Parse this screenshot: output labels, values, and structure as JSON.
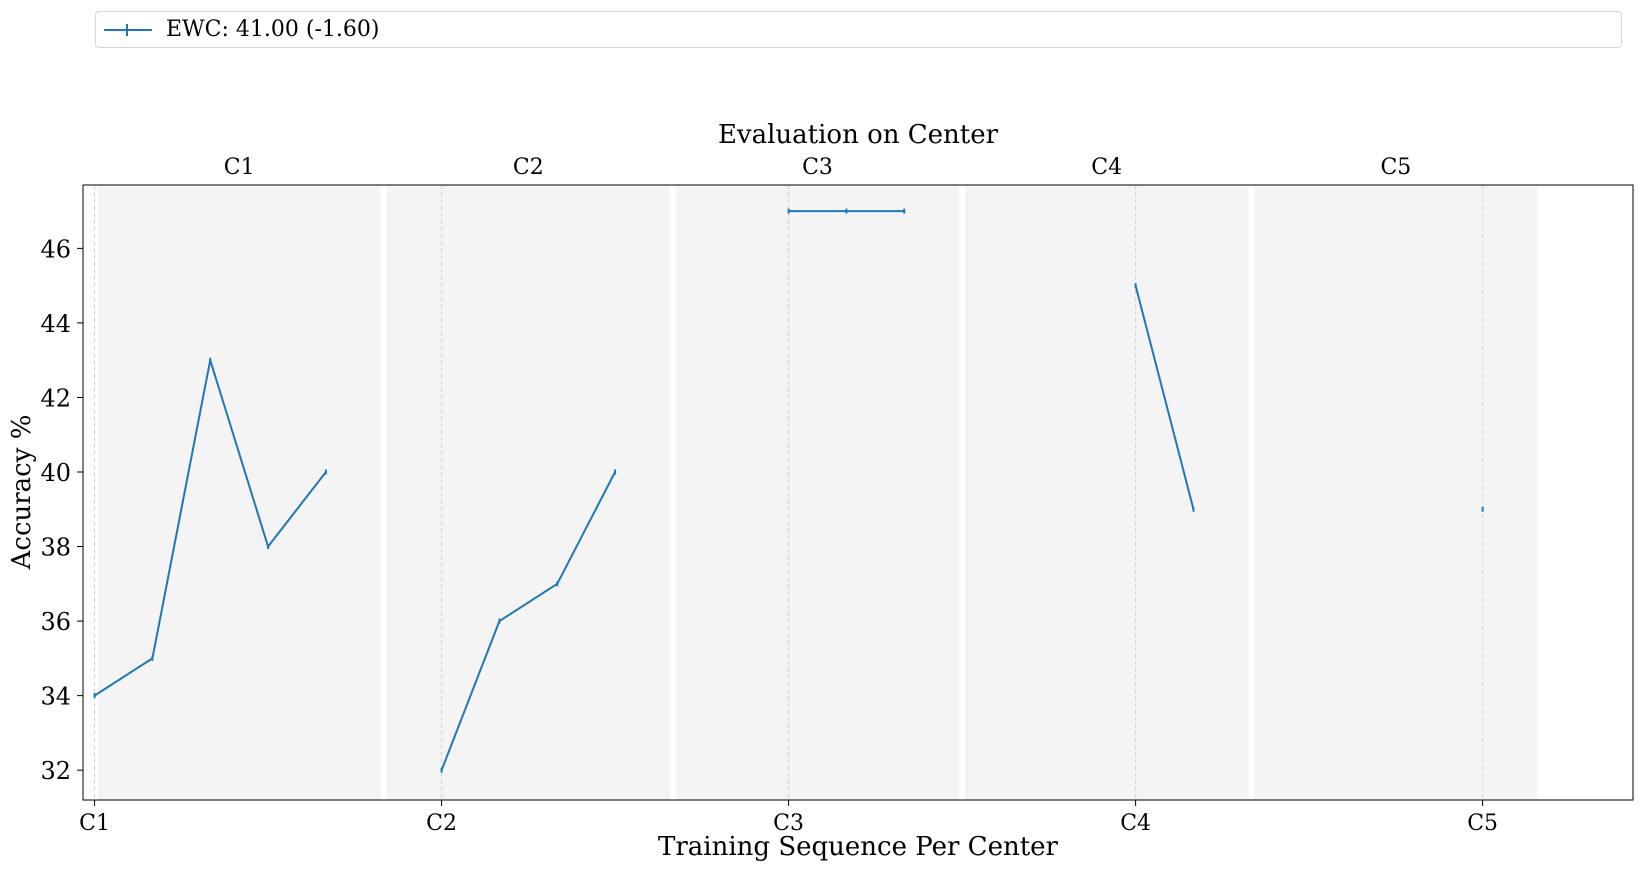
{
  "legend": {
    "label": "EWC: 41.00 (-1.60)",
    "color": "#1f77b4"
  },
  "chart_data": {
    "type": "line",
    "title": "Evaluation on Center",
    "xlabel": "Training Sequence Per Center",
    "ylabel": "Accuracy %",
    "ylim": [
      31.2,
      47.7
    ],
    "yticks": [
      32,
      34,
      36,
      38,
      40,
      42,
      44,
      46
    ],
    "xlim": [
      -0.2,
      26.6
    ],
    "xticks": [
      {
        "x": 0,
        "label": "C1"
      },
      {
        "x": 6,
        "label": "C2"
      },
      {
        "x": 12,
        "label": "C3"
      },
      {
        "x": 18,
        "label": "C4"
      },
      {
        "x": 24,
        "label": "C5"
      }
    ],
    "grid": "vertical dashed at tick positions",
    "legend_placement": "top, above plot",
    "line_color": "#1f77b4",
    "panel_color": "#f4f4f4",
    "panels": [
      {
        "label": "C1",
        "x_start": 0,
        "x_end": 5
      },
      {
        "label": "C2",
        "x_start": 5,
        "x_end": 10
      },
      {
        "label": "C3",
        "x_start": 10,
        "x_end": 15
      },
      {
        "label": "C4",
        "x_start": 15,
        "x_end": 20
      },
      {
        "label": "C5",
        "x_start": 20,
        "x_end": 25
      }
    ],
    "series": [
      {
        "name": "EWC: 41.00 (-1.60)",
        "segment": "C1",
        "x": [
          0,
          1,
          2,
          3,
          4
        ],
        "y": [
          34,
          35,
          43,
          38,
          40
        ]
      },
      {
        "segment": "C2",
        "x": [
          6,
          7,
          8,
          9
        ],
        "y": [
          32,
          36,
          37,
          40
        ]
      },
      {
        "segment": "C3",
        "x": [
          12,
          13,
          14
        ],
        "y": [
          47,
          47,
          47
        ]
      },
      {
        "segment": "C4",
        "x": [
          18,
          19
        ],
        "y": [
          45,
          39
        ]
      },
      {
        "segment": "C5",
        "x": [
          24
        ],
        "y": [
          39
        ]
      }
    ]
  }
}
